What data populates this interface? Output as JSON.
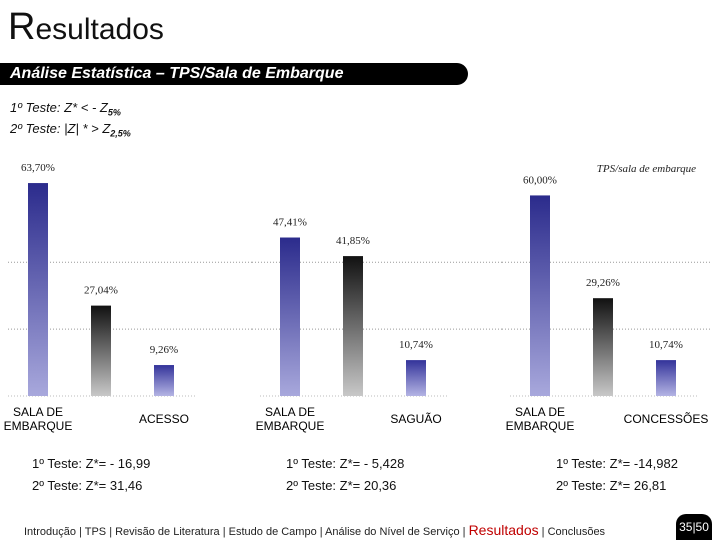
{
  "title": "Resultados",
  "subtitle": "Análise Estatística – TPS/Sala de Embarque",
  "hypotheses": [
    {
      "text": "1º Teste: Z* < - Z",
      "subscript": "5%"
    },
    {
      "text": "2º Teste: |Z| * > Z",
      "subscript": "2,5%"
    }
  ],
  "chart_data": [
    {
      "type": "bar",
      "categories": [
        "SALA DE EMBARQUE",
        null,
        "ACESSO"
      ],
      "values": [
        63.7,
        27.04,
        9.26
      ],
      "value_labels": [
        "63,70%",
        "27,04%",
        "9,26%"
      ],
      "colors": [
        "#2b2b8c",
        "#111111",
        "#33339a"
      ],
      "ylim": [
        0,
        70
      ],
      "yticks": [
        20,
        40
      ],
      "grid": true,
      "annotations": [
        "1º Teste: Z*= - 16,99",
        "2º Teste: Z*= 31,46"
      ]
    },
    {
      "type": "bar",
      "categories": [
        "SALA DE EMBARQUE",
        null,
        "SAGUÃO"
      ],
      "values": [
        47.41,
        41.85,
        10.74
      ],
      "value_labels": [
        "47,41%",
        "41,85%",
        "10,74%"
      ],
      "colors": [
        "#2b2b8c",
        "#111111",
        "#33339a"
      ],
      "ylim": [
        0,
        70
      ],
      "yticks": [
        20,
        40
      ],
      "grid": true,
      "annotations": [
        "1º Teste: Z*= - 5,428",
        "2º Teste: Z*= 20,36"
      ]
    },
    {
      "type": "bar",
      "categories": [
        "SALA DE EMBARQUE",
        null,
        "CONCESSÕES"
      ],
      "values": [
        60.0,
        29.26,
        10.74
      ],
      "value_labels": [
        "60,00%",
        "29,26%",
        "10,74%"
      ],
      "colors": [
        "#2b2b8c",
        "#111111",
        "#33339a"
      ],
      "ylim": [
        0,
        70
      ],
      "yticks": [
        20,
        40
      ],
      "grid": true,
      "note": "TPS/sala de embarque",
      "annotations": [
        "1º Teste: Z*= -14,982",
        "2º Teste: Z*= 26,81"
      ]
    }
  ],
  "footer": {
    "nav_before": "Introdução | TPS | Revisão de Literatura | Estudo de Campo | Análise do Nível de Serviço |",
    "nav_current": "Resultados",
    "nav_after": "| Conclusões",
    "page": "35|50"
  }
}
